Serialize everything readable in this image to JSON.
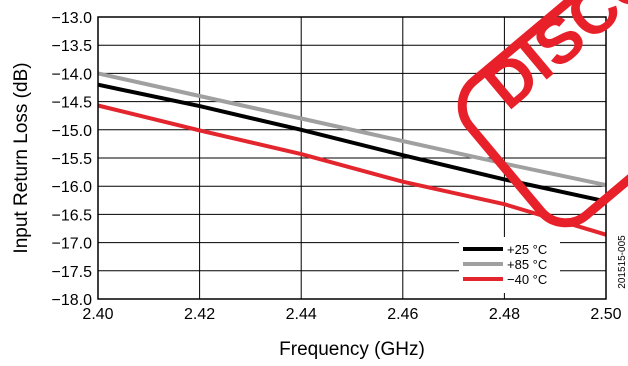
{
  "chart_data": {
    "type": "line",
    "xlabel": "Frequency (GHz)",
    "ylabel": "Input Return Loss (dB)",
    "xlim": [
      2.4,
      2.5
    ],
    "ylim": [
      -18.0,
      -13.0
    ],
    "x_ticks": [
      "2.40",
      "2.42",
      "2.44",
      "2.46",
      "2.48",
      "2.50"
    ],
    "y_ticks": [
      "−13.0",
      "−13.5",
      "−14.0",
      "−14.5",
      "−15.0",
      "−15.5",
      "−16.0",
      "−16.5",
      "−17.0",
      "−17.5",
      "−18.0"
    ],
    "grid": true,
    "legend_position": "bottom-right",
    "series": [
      {
        "name": "+25 °C",
        "color": "#000000",
        "x": [
          2.4,
          2.42,
          2.44,
          2.46,
          2.48,
          2.5
        ],
        "y": [
          -14.2,
          -14.58,
          -15.0,
          -15.45,
          -15.88,
          -16.27
        ]
      },
      {
        "name": "+85 °C",
        "color": "#a0a0a0",
        "x": [
          2.4,
          2.42,
          2.44,
          2.46,
          2.48,
          2.5
        ],
        "y": [
          -14.0,
          -14.4,
          -14.8,
          -15.2,
          -15.6,
          -15.98
        ]
      },
      {
        "name": "−40 °C",
        "color": "#e3262d",
        "x": [
          2.4,
          2.42,
          2.44,
          2.46,
          2.48,
          2.5
        ],
        "y": [
          -14.57,
          -15.01,
          -15.43,
          -15.92,
          -16.32,
          -16.86
        ]
      }
    ],
    "figure_code": "201515-005",
    "stamp_text": "DISCO"
  }
}
